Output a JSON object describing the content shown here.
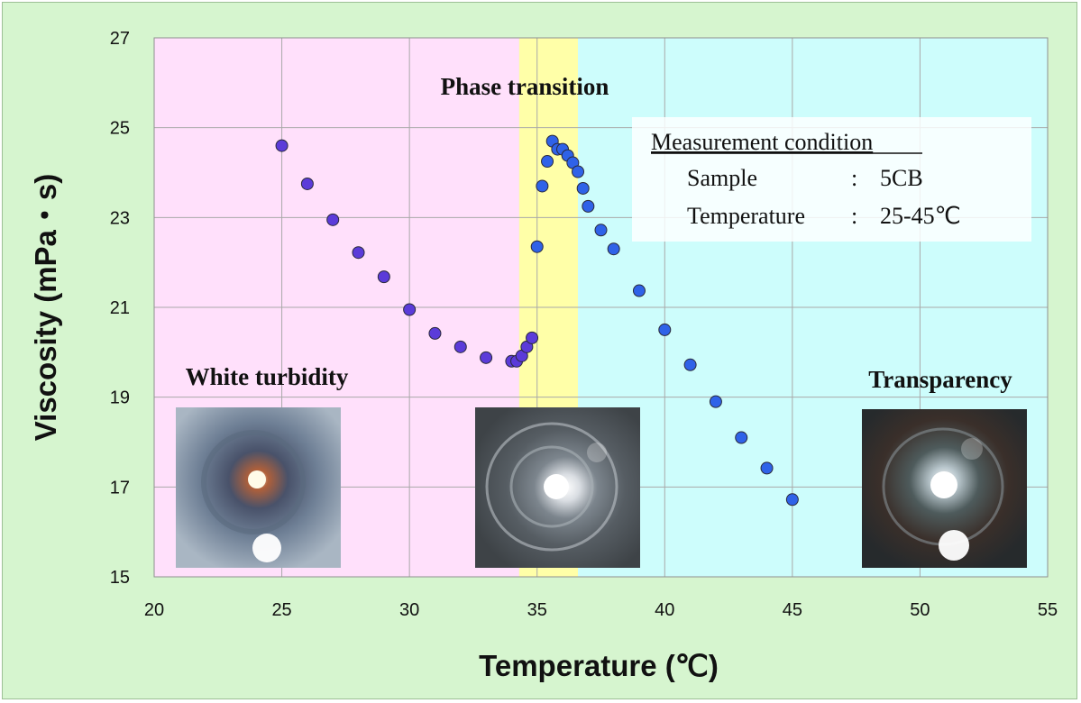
{
  "chart_data": {
    "type": "scatter",
    "title": "",
    "xlabel": "Temperature (℃)",
    "ylabel": "Viscosity (mPa・s)",
    "xlim": [
      20,
      55
    ],
    "ylim": [
      15,
      27
    ],
    "xticks": [
      20,
      25,
      30,
      35,
      40,
      45,
      50,
      55
    ],
    "yticks": [
      15,
      17,
      19,
      21,
      23,
      25,
      27
    ],
    "grid": true,
    "regions": [
      {
        "from": 20,
        "to": 34.3,
        "color": "#ffe0fb"
      },
      {
        "from": 34.3,
        "to": 36.6,
        "color": "#ffffa8"
      },
      {
        "from": 36.6,
        "to": 55,
        "color": "#cdfdfc"
      }
    ],
    "marker_colors": {
      "low": "#5b3bd9",
      "high": "#2f62e8"
    },
    "series": [
      {
        "x": [
          25,
          26,
          27,
          28,
          29,
          30,
          31,
          32,
          33,
          34,
          34.2,
          34.4,
          34.6,
          34.8,
          35.0,
          35.2,
          35.4,
          35.6,
          35.8,
          36.0,
          36.2,
          36.4,
          36.6,
          36.8,
          37.0,
          37.5,
          38.0,
          39,
          40,
          41,
          42,
          43,
          44,
          45
        ],
        "y": [
          24.6,
          23.75,
          22.95,
          22.22,
          21.68,
          20.95,
          20.42,
          20.12,
          19.88,
          19.8,
          19.8,
          19.92,
          20.12,
          20.32,
          22.35,
          23.7,
          24.25,
          24.7,
          24.52,
          24.52,
          24.38,
          24.22,
          24.02,
          23.65,
          23.25,
          22.72,
          22.3,
          21.37,
          20.5,
          19.72,
          18.9,
          18.1,
          17.42,
          16.72
        ]
      }
    ],
    "annotations": {
      "phase_transition": "Phase transition",
      "white_turbidity": "White turbidity",
      "transparency": "Transparency"
    },
    "legend": {
      "title": "Measurement condition",
      "rows": [
        {
          "key": "Sample",
          "sep": ":",
          "value": "5CB"
        },
        {
          "key": "Temperature",
          "sep": ":",
          "value": "25-45℃"
        }
      ]
    }
  }
}
